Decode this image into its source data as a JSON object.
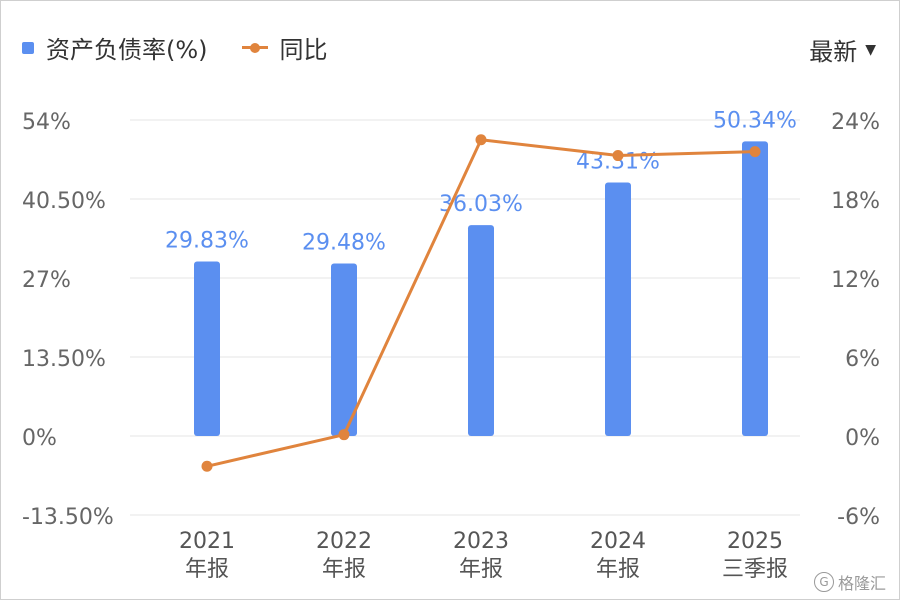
{
  "legend": {
    "bar_label": "资产负债率(%)",
    "line_label": "同比"
  },
  "filter": {
    "label": "最新",
    "icon": "caret-down-icon"
  },
  "watermark": {
    "text": "格隆汇",
    "icon": "G"
  },
  "colors": {
    "bar": "#5b8ff0",
    "line": "#e0843d",
    "bar_label": "#5b8ff0",
    "axis_text": "#666666",
    "grid": "#e6e6e6"
  },
  "chart_data": {
    "type": "bar+line",
    "title": "",
    "categories": [
      [
        "2021",
        "年报"
      ],
      [
        "2022",
        "年报"
      ],
      [
        "2023",
        "年报"
      ],
      [
        "2024",
        "年报"
      ],
      [
        "2025",
        "三季报"
      ]
    ],
    "series": [
      {
        "name": "资产负债率(%)",
        "type": "bar",
        "axis": "left",
        "values": [
          29.83,
          29.48,
          36.03,
          43.31,
          50.34
        ],
        "labels": [
          "29.83%",
          "29.48%",
          "36.03%",
          "43.31%",
          "50.34%"
        ]
      },
      {
        "name": "同比",
        "type": "line",
        "axis": "right",
        "values": [
          -2.3,
          0.1,
          22.5,
          21.3,
          21.6
        ]
      }
    ],
    "left_axis": {
      "ylim": [
        -13.5,
        54
      ],
      "ticks": [
        54,
        40.5,
        27,
        13.5,
        0,
        -13.5
      ],
      "tick_labels": [
        "54%",
        "40.50%",
        "27%",
        "13.50%",
        "0%",
        "-13.50%"
      ]
    },
    "right_axis": {
      "ylim": [
        -6,
        24
      ],
      "ticks": [
        24,
        18,
        12,
        6,
        0,
        -6
      ],
      "tick_labels": [
        "24%",
        "18%",
        "12%",
        "6%",
        "0%",
        "-6%"
      ]
    },
    "grid": true,
    "legend_position": "top-left"
  }
}
